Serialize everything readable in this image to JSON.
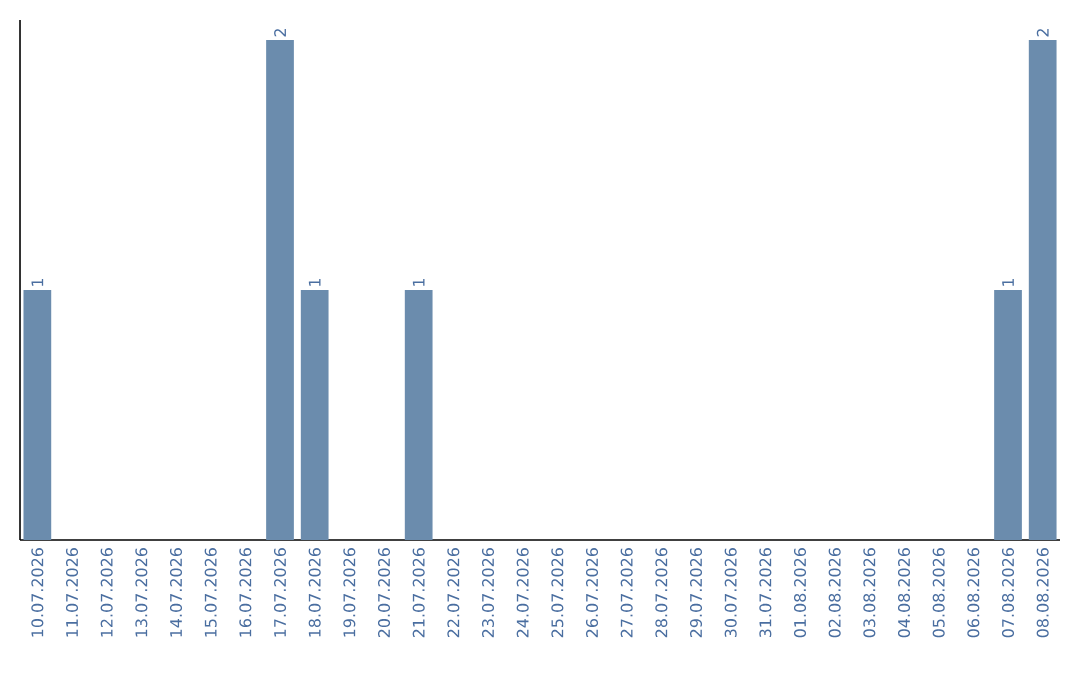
{
  "chart_data": {
    "type": "bar",
    "categories": [
      "10.07.2026",
      "11.07.2026",
      "12.07.2026",
      "13.07.2026",
      "14.07.2026",
      "15.07.2026",
      "16.07.2026",
      "17.07.2026",
      "18.07.2026",
      "19.07.2026",
      "20.07.2026",
      "21.07.2026",
      "22.07.2026",
      "23.07.2026",
      "24.07.2026",
      "25.07.2026",
      "26.07.2026",
      "27.07.2026",
      "28.07.2026",
      "29.07.2026",
      "30.07.2026",
      "31.07.2026",
      "01.08.2026",
      "02.08.2026",
      "03.08.2026",
      "04.08.2026",
      "05.08.2026",
      "06.08.2026",
      "07.08.2026",
      "08.08.2026"
    ],
    "values": [
      1,
      0,
      0,
      0,
      0,
      0,
      0,
      2,
      1,
      0,
      0,
      1,
      0,
      0,
      0,
      0,
      0,
      0,
      0,
      0,
      0,
      0,
      0,
      0,
      0,
      0,
      0,
      0,
      1,
      2
    ],
    "value_labels": [
      "1",
      null,
      null,
      null,
      null,
      null,
      null,
      "2",
      "1",
      null,
      null,
      "1",
      null,
      null,
      null,
      null,
      null,
      null,
      null,
      null,
      null,
      null,
      null,
      null,
      null,
      null,
      null,
      null,
      "1",
      "2"
    ],
    "color": "#6b8cad",
    "ylim": [
      0,
      2.08
    ],
    "tick_labels": "x",
    "grid": false
  }
}
